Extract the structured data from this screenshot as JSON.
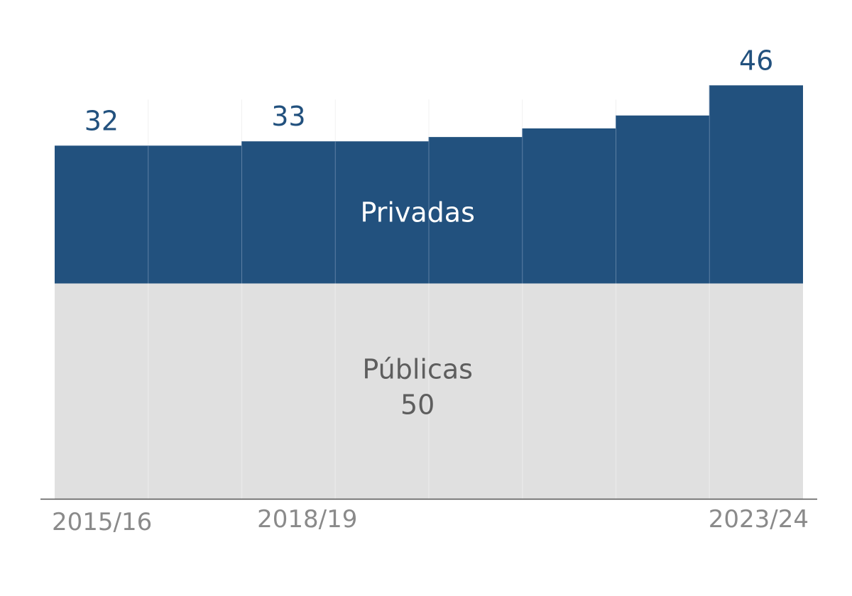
{
  "chart_data": {
    "type": "bar",
    "stacked": true,
    "title": "",
    "xlabel": "",
    "ylabel": "",
    "categories": [
      "2015/16",
      "",
      "2018/19",
      "",
      "",
      "",
      "",
      "2023/24"
    ],
    "series": [
      {
        "name": "Públicas",
        "values": [
          50,
          50,
          50,
          50,
          50,
          50,
          50,
          50
        ],
        "color": "#e0e0e0",
        "label_value": "50"
      },
      {
        "name": "Privadas",
        "values": [
          32,
          32,
          33,
          33,
          34,
          36,
          39,
          46
        ],
        "color": "#22517e"
      }
    ],
    "data_labels": [
      {
        "index": 0,
        "text": "32"
      },
      {
        "index": 2,
        "text": "33"
      },
      {
        "index": 7,
        "text": "46"
      }
    ],
    "ylim": [
      0,
      96
    ],
    "grid": false,
    "legend": "none"
  }
}
